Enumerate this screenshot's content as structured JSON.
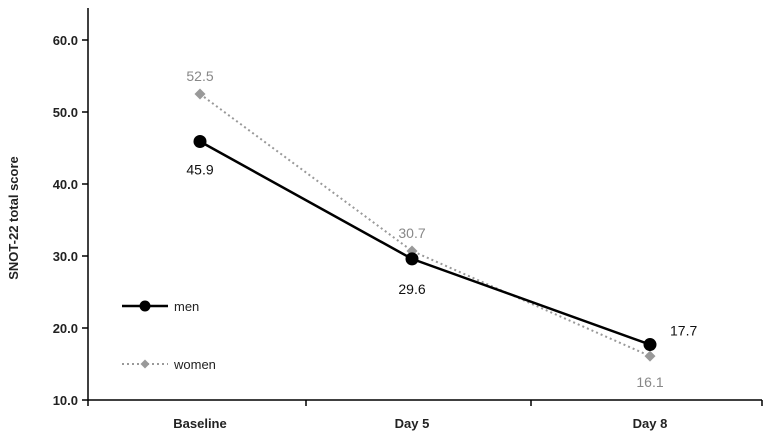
{
  "chart_data": {
    "type": "line",
    "categories": [
      "Baseline",
      "Day 5",
      "Day 8"
    ],
    "ylabel": "SNOT-22 total score",
    "ylim": [
      10,
      60
    ],
    "yticks": [
      "10.0",
      "20.0",
      "30.0",
      "40.0",
      "50.0",
      "60.0"
    ],
    "grid": false,
    "legend_position": "left",
    "series": [
      {
        "name": "men",
        "values": [
          45.9,
          29.6,
          17.7
        ],
        "labels": [
          "45.9",
          "29.6",
          "17.7"
        ],
        "color": "#000000",
        "line_style": "solid",
        "marker": "circle"
      },
      {
        "name": "women",
        "values": [
          52.5,
          30.7,
          16.1
        ],
        "labels": [
          "52.5",
          "30.7",
          "16.1"
        ],
        "color": "#999999",
        "line_style": "dotted",
        "marker": "diamond"
      }
    ]
  }
}
